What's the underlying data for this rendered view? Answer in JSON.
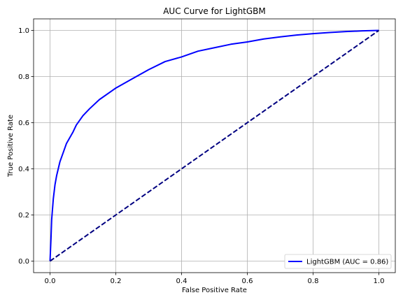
{
  "chart_data": {
    "type": "line",
    "title": "AUC Curve for LightGBM",
    "xlabel": "False Positive Rate",
    "ylabel": "True Positive Rate",
    "xlim": [
      -0.05,
      1.05
    ],
    "ylim": [
      -0.05,
      1.05
    ],
    "xticks": [
      0.0,
      0.2,
      0.4,
      0.6,
      0.8,
      1.0
    ],
    "yticks": [
      0.0,
      0.2,
      0.4,
      0.6,
      0.8,
      1.0
    ],
    "xtick_labels": [
      "0.0",
      "0.2",
      "0.4",
      "0.6",
      "0.8",
      "1.0"
    ],
    "ytick_labels": [
      "0.0",
      "0.2",
      "0.4",
      "0.6",
      "0.8",
      "1.0"
    ],
    "grid": true,
    "legend_position": "lower-right",
    "series": [
      {
        "name": "LightGBM (AUC = 0.86)",
        "color": "#0000ff",
        "style": "solid",
        "x": [
          0.0,
          0.003,
          0.005,
          0.01,
          0.015,
          0.02,
          0.03,
          0.04,
          0.05,
          0.07,
          0.08,
          0.1,
          0.12,
          0.15,
          0.2,
          0.25,
          0.3,
          0.35,
          0.4,
          0.45,
          0.5,
          0.55,
          0.6,
          0.65,
          0.7,
          0.75,
          0.8,
          0.85,
          0.9,
          0.95,
          1.0
        ],
        "y": [
          0.0,
          0.1,
          0.18,
          0.27,
          0.33,
          0.37,
          0.43,
          0.47,
          0.51,
          0.56,
          0.59,
          0.63,
          0.66,
          0.7,
          0.75,
          0.79,
          0.83,
          0.865,
          0.885,
          0.91,
          0.925,
          0.94,
          0.95,
          0.963,
          0.972,
          0.98,
          0.986,
          0.991,
          0.995,
          0.998,
          1.0
        ]
      },
      {
        "color": "#000080",
        "style": "dashed",
        "x": [
          0.0,
          1.0
        ],
        "y": [
          0.0,
          1.0
        ]
      }
    ]
  }
}
